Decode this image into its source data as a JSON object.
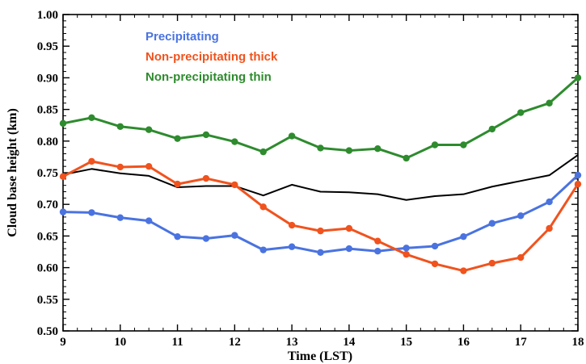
{
  "chart_data": {
    "type": "line",
    "title": "",
    "xlabel": "Time (LST)",
    "ylabel": "Cloud base height (km)",
    "xlim": [
      9,
      18
    ],
    "ylim": [
      0.5,
      1.0
    ],
    "x_ticks": [
      "9",
      "10",
      "11",
      "12",
      "13",
      "14",
      "15",
      "16",
      "17",
      "18"
    ],
    "y_ticks": [
      "0.50",
      "0.55",
      "0.60",
      "0.65",
      "0.70",
      "0.75",
      "0.80",
      "0.85",
      "0.90",
      "0.95",
      "1.00"
    ],
    "grid": false,
    "legend_position": "top-left",
    "x": [
      9,
      9.5,
      10,
      10.5,
      11,
      11.5,
      12,
      12.5,
      13,
      13.5,
      14,
      14.5,
      15,
      15.5,
      16,
      16.5,
      17,
      17.5,
      18
    ],
    "series": [
      {
        "name": "Precipitating",
        "color": "#4a73e0",
        "markers": true,
        "values": [
          0.688,
          0.687,
          0.679,
          0.674,
          0.649,
          0.646,
          0.651,
          0.628,
          0.633,
          0.624,
          0.63,
          0.626,
          0.631,
          0.634,
          0.649,
          0.67,
          0.682,
          0.704,
          0.746
        ]
      },
      {
        "name": "Non-precipitating thick",
        "color": "#f0531e",
        "markers": true,
        "values": [
          0.744,
          0.768,
          0.759,
          0.76,
          0.732,
          0.741,
          0.731,
          0.696,
          0.667,
          0.658,
          0.662,
          0.642,
          0.621,
          0.606,
          0.595,
          0.607,
          0.616,
          0.662,
          0.732
        ]
      },
      {
        "name": "Non-precipitating thin",
        "color": "#2e8b2e",
        "markers": true,
        "values": [
          0.828,
          0.837,
          0.823,
          0.818,
          0.804,
          0.81,
          0.799,
          0.783,
          0.808,
          0.789,
          0.785,
          0.788,
          0.773,
          0.794,
          0.794,
          0.819,
          0.845,
          0.86,
          0.9
        ]
      },
      {
        "color": "#000000",
        "markers": false,
        "values": [
          0.747,
          0.756,
          0.749,
          0.745,
          0.727,
          0.729,
          0.729,
          0.714,
          0.731,
          0.72,
          0.719,
          0.716,
          0.707,
          0.713,
          0.716,
          0.728,
          0.737,
          0.746,
          0.778
        ]
      }
    ]
  }
}
